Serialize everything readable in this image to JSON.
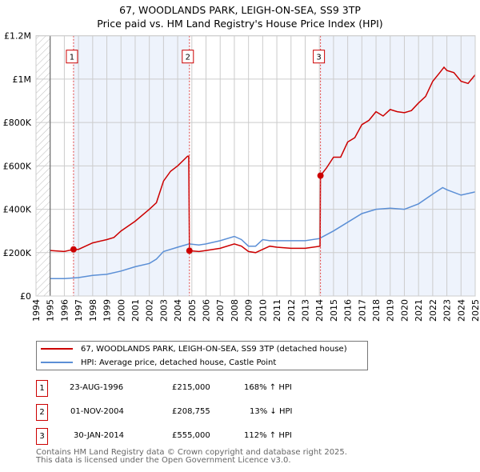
{
  "title_line1": "67, WOODLANDS PARK, LEIGH-ON-SEA, SS9 3TP",
  "title_line2": "Price paid vs. HM Land Registry's House Price Index (HPI)",
  "colors": {
    "property": "#cc0000",
    "hpi": "#5b8fd6",
    "shade": "#eef3fc"
  },
  "chart_data": {
    "type": "line",
    "title": "67, WOODLANDS PARK, LEIGH-ON-SEA, SS9 3TP — Price paid vs. HM Land Registry's House Price Index (HPI)",
    "xlim": [
      1994,
      2025
    ],
    "ylim": [
      0,
      1200000
    ],
    "x_ticks": [
      "1994",
      "1995",
      "1996",
      "1997",
      "1998",
      "1999",
      "2000",
      "2001",
      "2002",
      "2003",
      "2004",
      "2005",
      "2006",
      "2007",
      "2008",
      "2009",
      "2010",
      "2011",
      "2012",
      "2013",
      "2014",
      "2015",
      "2016",
      "2017",
      "2018",
      "2019",
      "2020",
      "2021",
      "2022",
      "2023",
      "2024",
      "2025"
    ],
    "y_ticks": [
      {
        "v": 0,
        "label": "£0"
      },
      {
        "v": 200000,
        "label": "£200K"
      },
      {
        "v": 400000,
        "label": "£400K"
      },
      {
        "v": 600000,
        "label": "£600K"
      },
      {
        "v": 800000,
        "label": "£800K"
      },
      {
        "v": 1000000,
        "label": "£1M"
      },
      {
        "v": 1200000,
        "label": "£1.2M"
      }
    ],
    "grid": true,
    "series": [
      {
        "name": "67, WOODLANDS PARK, LEIGH-ON-SEA, SS9 3TP (detached house)",
        "color": "#cc0000",
        "x": [
          1995,
          1996,
          1996.65,
          1997,
          1998,
          1999,
          1999.5,
          2000,
          2001,
          2002,
          2002.5,
          2003,
          2003.5,
          2004,
          2004.7,
          2004.78,
          2004.83,
          2005.5,
          2006,
          2007,
          2008,
          2008.5,
          2009,
          2009.5,
          2010,
          2010.5,
          2011,
          2012,
          2013,
          2014.05,
          2014.08,
          2014.5,
          2015,
          2015.5,
          2016,
          2016.5,
          2017,
          2017.5,
          2018,
          2018.5,
          2019,
          2019.5,
          2020,
          2020.5,
          2021,
          2021.5,
          2022,
          2022.5,
          2022.8,
          2023,
          2023.5,
          2024,
          2024.5,
          2025
        ],
        "y": [
          210000,
          205000,
          215000,
          215000,
          245000,
          260000,
          270000,
          300000,
          345000,
          400000,
          430000,
          530000,
          575000,
          600000,
          645000,
          645000,
          208755,
          205000,
          210000,
          220000,
          240000,
          230000,
          205000,
          200000,
          215000,
          230000,
          225000,
          220000,
          220000,
          230000,
          555000,
          590000,
          640000,
          640000,
          710000,
          730000,
          790000,
          810000,
          850000,
          830000,
          860000,
          850000,
          845000,
          855000,
          890000,
          920000,
          990000,
          1030000,
          1055000,
          1040000,
          1030000,
          990000,
          980000,
          1020000
        ]
      },
      {
        "name": "HPI: Average price, detached house, Castle Point",
        "color": "#5b8fd6",
        "x": [
          1995,
          1996,
          1997,
          1998,
          1999,
          2000,
          2001,
          2002,
          2002.5,
          2003,
          2004,
          2004.8,
          2005.5,
          2006,
          2007,
          2008,
          2008.5,
          2009,
          2009.5,
          2010,
          2010.5,
          2011,
          2012,
          2013,
          2014,
          2015,
          2016,
          2017,
          2018,
          2019,
          2020,
          2021,
          2022,
          2022.7,
          2023,
          2024,
          2025
        ],
        "y": [
          80000,
          80000,
          85000,
          95000,
          100000,
          115000,
          135000,
          150000,
          170000,
          205000,
          225000,
          240000,
          235000,
          240000,
          255000,
          275000,
          260000,
          230000,
          230000,
          260000,
          255000,
          255000,
          255000,
          255000,
          265000,
          300000,
          340000,
          380000,
          400000,
          405000,
          400000,
          425000,
          470000,
          500000,
          490000,
          465000,
          480000
        ]
      }
    ],
    "sales": [
      {
        "id": "1",
        "x": 1996.65,
        "y": 215000,
        "date": "23-AUG-1996",
        "price": "£215,000",
        "hpi": "168% ↑ HPI"
      },
      {
        "id": "2",
        "x": 2004.83,
        "y": 208755,
        "date": "01-NOV-2004",
        "price": "£208,755",
        "hpi": "13% ↓ HPI"
      },
      {
        "id": "3",
        "x": 2014.08,
        "y": 555000,
        "date": "30-JAN-2014",
        "price": "£555,000",
        "hpi": "112% ↑ HPI"
      }
    ],
    "legend_position": "below"
  },
  "footer_line1": "Contains HM Land Registry data © Crown copyright and database right 2025.",
  "footer_line2": "This data is licensed under the Open Government Licence v3.0."
}
